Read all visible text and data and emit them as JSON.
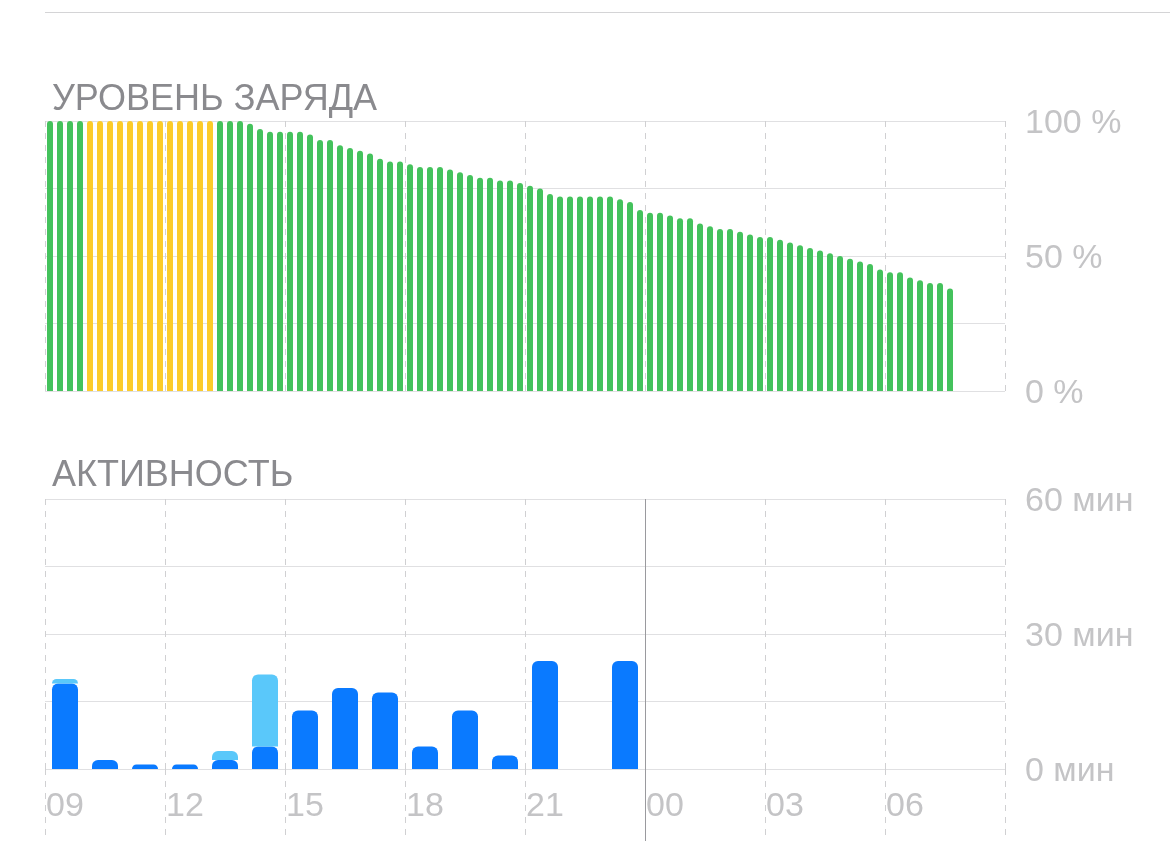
{
  "chart_data": [
    {
      "type": "bar",
      "title": "УРОВЕНЬ ЗАРЯДА",
      "categories": [
        null,
        null,
        null,
        null,
        null,
        null,
        null,
        null,
        null,
        null,
        null,
        null,
        null,
        null,
        null,
        null,
        null,
        null,
        null,
        null,
        null,
        null,
        null,
        null,
        null,
        null,
        null,
        null,
        null,
        null,
        null,
        null,
        null,
        null,
        null,
        null,
        null,
        null,
        null,
        null,
        null,
        null,
        null,
        null,
        null,
        null,
        null,
        null,
        null,
        null,
        null,
        null,
        null,
        null,
        null,
        null,
        null,
        null,
        null,
        null,
        null,
        null,
        null,
        null,
        null,
        null,
        null,
        null,
        null,
        null,
        null,
        null,
        null,
        null,
        null,
        null,
        null,
        null,
        null,
        null,
        null,
        null,
        null,
        null,
        null,
        null,
        null,
        null,
        null,
        null,
        null,
        null,
        null,
        null,
        null,
        null
      ],
      "values": [
        100,
        100,
        100,
        100,
        100,
        100,
        100,
        100,
        100,
        100,
        100,
        100,
        100,
        100,
        100,
        100,
        100,
        100,
        100,
        100,
        99,
        97,
        96,
        96,
        96,
        96,
        95,
        93,
        93,
        91,
        90,
        89,
        88,
        86,
        85,
        85,
        84,
        83,
        83,
        83,
        82,
        81,
        80,
        79,
        79,
        78,
        78,
        77,
        76,
        75,
        73,
        72,
        72,
        72,
        72,
        72,
        72,
        71,
        70,
        67,
        66,
        66,
        65,
        64,
        64,
        62,
        61,
        60,
        60,
        59,
        58,
        57,
        57,
        56,
        55,
        54,
        53,
        52,
        51,
        50,
        49,
        48,
        47,
        45,
        44,
        44,
        42,
        41,
        40,
        40,
        38,
        null,
        null,
        null,
        null,
        null
      ],
      "colors": [
        "#44c25c",
        "#44c25c",
        "#44c25c",
        "#44c25c",
        "#fccc2a",
        "#fccc2a",
        "#fccc2a",
        "#fccc2a",
        "#fccc2a",
        "#fccc2a",
        "#fccc2a",
        "#fccc2a",
        "#fccc2a",
        "#fccc2a",
        "#fccc2a",
        "#fccc2a",
        "#fccc2a",
        "#44c25c",
        "#44c25c",
        "#44c25c",
        "#44c25c",
        "#44c25c",
        "#44c25c",
        "#44c25c",
        "#44c25c",
        "#44c25c",
        "#44c25c",
        "#44c25c",
        "#44c25c",
        "#44c25c",
        "#44c25c",
        "#44c25c",
        "#44c25c",
        "#44c25c",
        "#44c25c",
        "#44c25c",
        "#44c25c",
        "#44c25c",
        "#44c25c",
        "#44c25c",
        "#44c25c",
        "#44c25c",
        "#44c25c",
        "#44c25c",
        "#44c25c",
        "#44c25c",
        "#44c25c",
        "#44c25c",
        "#44c25c",
        "#44c25c",
        "#44c25c",
        "#44c25c",
        "#44c25c",
        "#44c25c",
        "#44c25c",
        "#44c25c",
        "#44c25c",
        "#44c25c",
        "#44c25c",
        "#44c25c",
        "#44c25c",
        "#44c25c",
        "#44c25c",
        "#44c25c",
        "#44c25c",
        "#44c25c",
        "#44c25c",
        "#44c25c",
        "#44c25c",
        "#44c25c",
        "#44c25c",
        "#44c25c",
        "#44c25c",
        "#44c25c",
        "#44c25c",
        "#44c25c",
        "#44c25c",
        "#44c25c",
        "#44c25c",
        "#44c25c",
        "#44c25c",
        "#44c25c",
        "#44c25c",
        "#44c25c",
        "#44c25c",
        "#44c25c",
        "#44c25c",
        "#44c25c",
        "#44c25c",
        "#44c25c",
        "#44c25c",
        null,
        null,
        null,
        null,
        null
      ],
      "ylim": [
        0,
        100
      ],
      "yticks": [
        {
          "value": 0,
          "label": "0 %"
        },
        {
          "value": 25,
          "label": null
        },
        {
          "value": 50,
          "label": "50 %"
        },
        {
          "value": 75,
          "label": null
        },
        {
          "value": 100,
          "label": "100 %"
        }
      ],
      "grid": true,
      "tick_labels": "y"
    },
    {
      "type": "bar",
      "title": "АКТИВНОСТЬ",
      "categories": [
        "09",
        null,
        null,
        "12",
        null,
        null,
        "15",
        null,
        null,
        "18",
        null,
        null,
        "21",
        null,
        null,
        "00",
        null,
        null,
        "03",
        null,
        null,
        "06",
        null,
        null
      ],
      "series": [
        {
          "color": "#0a7aff",
          "values": [
            19,
            2,
            1,
            1,
            2,
            5,
            13,
            18,
            17,
            5,
            13,
            3,
            24,
            null,
            24,
            null,
            null,
            null,
            null,
            null,
            null,
            null,
            null,
            null
          ]
        },
        {
          "color": "#5ac8fa",
          "values": [
            1,
            null,
            null,
            null,
            2,
            16,
            null,
            null,
            null,
            null,
            null,
            null,
            null,
            null,
            null,
            null,
            null,
            null,
            null,
            null,
            null,
            null,
            null,
            null
          ]
        }
      ],
      "stacked": true,
      "ylim": [
        0,
        60
      ],
      "yticks": [
        {
          "value": 0,
          "label": "0 мин"
        },
        {
          "value": 15,
          "label": null
        },
        {
          "value": 30,
          "label": "30 мин"
        },
        {
          "value": 45,
          "label": null
        },
        {
          "value": 60,
          "label": "60 мин"
        }
      ],
      "grid": true,
      "ref_lines": [
        {
          "axis": "x",
          "value": "00",
          "color": "#9a9a9e",
          "line_style": "solid"
        }
      ]
    }
  ]
}
